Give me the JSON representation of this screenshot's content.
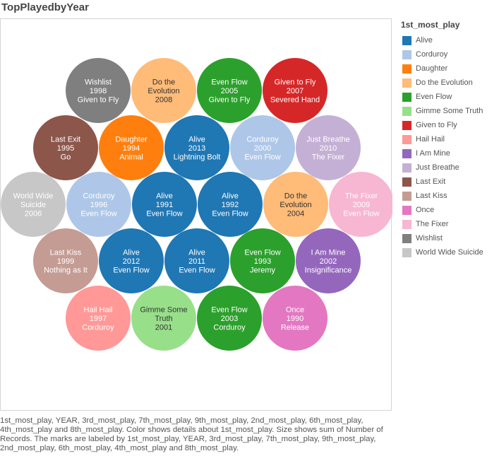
{
  "title": "TopPlayedbyYear",
  "caption": "1st_most_play, YEAR, 3rd_most_play, 7th_most_play, 9th_most_play, 2nd_most_play, 6th_most_play, 4th_most_play and 8th_most_play.  Color shows details about 1st_most_play.  Size shows sum of Number of Records.  The marks are labeled by 1st_most_play, YEAR, 3rd_most_play, 7th_most_play, 9th_most_play, 2nd_most_play, 6th_most_play, 4th_most_play and 8th_most_play.",
  "legend": {
    "title": "1st_most_play",
    "items": [
      {
        "label": "Alive",
        "color": "#1f77b4"
      },
      {
        "label": "Corduroy",
        "color": "#aec7e8"
      },
      {
        "label": "Daughter",
        "color": "#ff7f0e"
      },
      {
        "label": "Do the Evolution",
        "color": "#ffbb78"
      },
      {
        "label": "Even Flow",
        "color": "#2ca02c"
      },
      {
        "label": "Gimme Some Truth",
        "color": "#98df8a"
      },
      {
        "label": "Given to Fly",
        "color": "#d62728"
      },
      {
        "label": "Hail Hail",
        "color": "#ff9896"
      },
      {
        "label": "I Am Mine",
        "color": "#9467bd"
      },
      {
        "label": "Just Breathe",
        "color": "#c5b0d5"
      },
      {
        "label": "Last Exit",
        "color": "#8c564b"
      },
      {
        "label": "Last Kiss",
        "color": "#c49c94"
      },
      {
        "label": "Once",
        "color": "#e377c2"
      },
      {
        "label": "The Fixer",
        "color": "#f7b6d2"
      },
      {
        "label": "Wishlist",
        "color": "#7f7f7f"
      },
      {
        "label": "World Wide Suicide",
        "color": "#c7c7c7"
      }
    ]
  },
  "chart_data": {
    "type": "packed-bubble",
    "title": "TopPlayedbyYear",
    "size_measure": "Number of Records",
    "bubbles": [
      {
        "first": "Wishlist",
        "year": "1998",
        "third": "Given to Fly",
        "lines": [
          "Wishlist",
          "1998",
          "Given to Fly"
        ]
      },
      {
        "first": "Do the Evolution",
        "year": "2008",
        "third": "",
        "lines": [
          "Do the",
          "Evolution",
          "2008"
        ]
      },
      {
        "first": "Even Flow",
        "year": "2005",
        "third": "Given to Fly",
        "lines": [
          "Even Flow",
          "2005",
          "Given to Fly"
        ]
      },
      {
        "first": "Given to Fly",
        "year": "2007",
        "third": "Severed Hand",
        "lines": [
          "Given to Fly",
          "2007",
          "Severed Hand"
        ]
      },
      {
        "first": "Last Exit",
        "year": "1995",
        "third": "Go",
        "lines": [
          "Last Exit",
          "1995",
          "Go"
        ]
      },
      {
        "first": "Daughter",
        "year": "1994",
        "third": "Animal",
        "lines": [
          "Daughter",
          "1994",
          "Animal"
        ]
      },
      {
        "first": "Alive",
        "year": "2013",
        "third": "Lightning Bolt",
        "lines": [
          "Alive",
          "2013",
          "Lightning Bolt"
        ]
      },
      {
        "first": "Corduroy",
        "year": "2000",
        "third": "Even Flow",
        "lines": [
          "Corduroy",
          "2000",
          "Even Flow"
        ]
      },
      {
        "first": "Just Breathe",
        "year": "2010",
        "third": "The Fixer",
        "lines": [
          "Just Breathe",
          "2010",
          "The Fixer"
        ]
      },
      {
        "first": "World Wide Suicide",
        "year": "2006",
        "third": "",
        "lines": [
          "World Wide",
          "Suicide",
          "2006"
        ]
      },
      {
        "first": "Corduroy",
        "year": "1996",
        "third": "Even Flow",
        "lines": [
          "Corduroy",
          "1996",
          "Even Flow"
        ]
      },
      {
        "first": "Alive",
        "year": "1991",
        "third": "Even Flow",
        "lines": [
          "Alive",
          "1991",
          "Even Flow"
        ]
      },
      {
        "first": "Alive",
        "year": "1992",
        "third": "Even Flow",
        "lines": [
          "Alive",
          "1992",
          "Even Flow"
        ]
      },
      {
        "first": "Do the Evolution",
        "year": "2004",
        "third": "",
        "lines": [
          "Do the",
          "Evolution",
          "2004"
        ]
      },
      {
        "first": "The Fixer",
        "year": "2009",
        "third": "Even Flow",
        "lines": [
          "The Fixer",
          "2009",
          "Even Flow"
        ]
      },
      {
        "first": "Last Kiss",
        "year": "1999",
        "third": "Nothing as It",
        "lines": [
          "Last Kiss",
          "1999",
          "Nothing as It"
        ]
      },
      {
        "first": "Alive",
        "year": "2012",
        "third": "Even Flow",
        "lines": [
          "Alive",
          "2012",
          "Even Flow"
        ]
      },
      {
        "first": "Alive",
        "year": "2011",
        "third": "Even Flow",
        "lines": [
          "Alive",
          "2011",
          "Even Flow"
        ]
      },
      {
        "first": "Even Flow",
        "year": "1993",
        "third": "Jeremy",
        "lines": [
          "Even Flow",
          "1993",
          "Jeremy"
        ]
      },
      {
        "first": "I Am Mine",
        "year": "2002",
        "third": "Insignificance",
        "lines": [
          "I Am Mine",
          "2002",
          "Insignificance"
        ]
      },
      {
        "first": "Hail Hail",
        "year": "1997",
        "third": "Corduroy",
        "lines": [
          "Hail Hail",
          "1997",
          "Corduroy"
        ]
      },
      {
        "first": "Gimme Some Truth",
        "year": "2001",
        "third": "",
        "lines": [
          "Gimme Some",
          "Truth",
          "2001"
        ]
      },
      {
        "first": "Even Flow",
        "year": "2003",
        "third": "Corduroy",
        "lines": [
          "Even Flow",
          "2003",
          "Corduroy"
        ]
      },
      {
        "first": "Once",
        "year": "1990",
        "third": "Release",
        "lines": [
          "Once",
          "1990",
          "Release"
        ]
      }
    ]
  }
}
